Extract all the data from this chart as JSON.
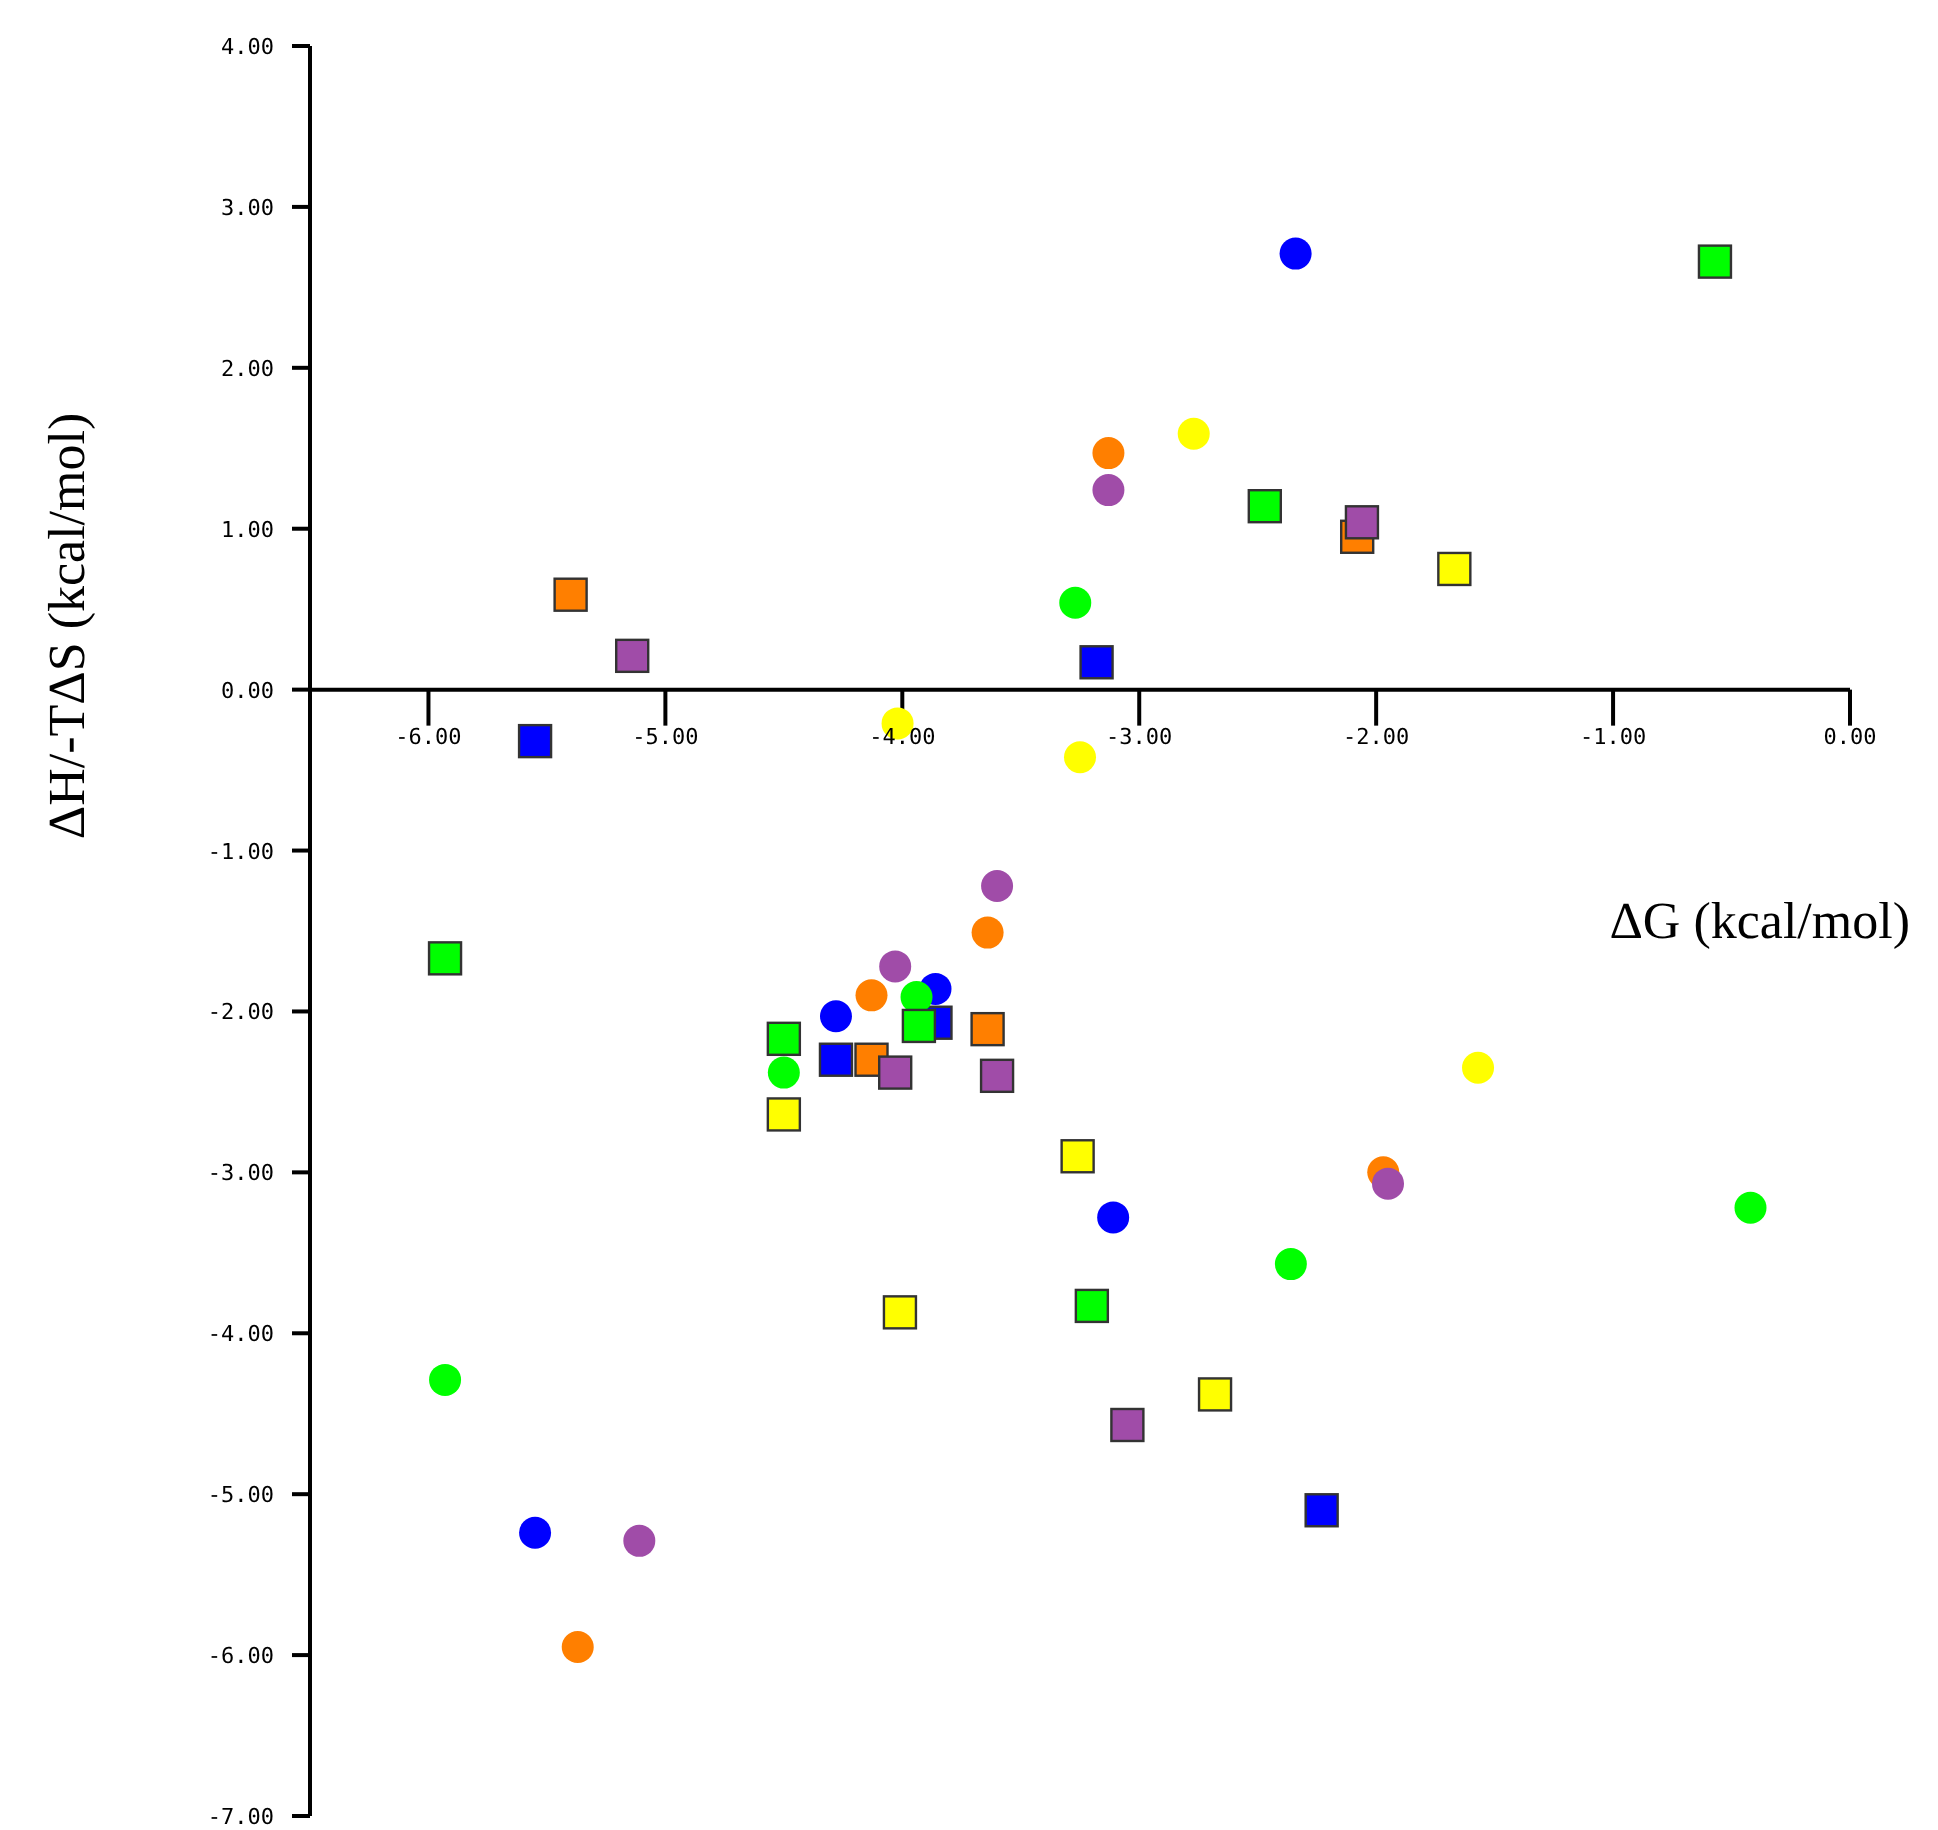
{
  "chart_data": {
    "type": "scatter",
    "xlabel": "ΔG (kcal/mol)",
    "ylabel": "ΔH/-TΔS (kcal/mol)",
    "xlim": [
      -6.5,
      0
    ],
    "ylim": [
      -7,
      4
    ],
    "xticks": [
      {
        "value": -6,
        "label": "-6.00"
      },
      {
        "value": -5,
        "label": "-5.00"
      },
      {
        "value": -4,
        "label": "-4.00"
      },
      {
        "value": -3,
        "label": "-3.00"
      },
      {
        "value": -2,
        "label": "-2.00"
      },
      {
        "value": -1,
        "label": "-1.00"
      },
      {
        "value": 0,
        "label": "0.00"
      }
    ],
    "yticks": [
      {
        "value": 4,
        "label": "4.00"
      },
      {
        "value": 3,
        "label": "3.00"
      },
      {
        "value": 2,
        "label": "2.00"
      },
      {
        "value": 1,
        "label": "1.00"
      },
      {
        "value": 0,
        "label": "0.00"
      },
      {
        "value": -1,
        "label": "-1.00"
      },
      {
        "value": -2,
        "label": "-2.00"
      },
      {
        "value": -3,
        "label": "-3.00"
      },
      {
        "value": -4,
        "label": "-4.00"
      },
      {
        "value": -5,
        "label": "-5.00"
      },
      {
        "value": -6,
        "label": "-6.00"
      },
      {
        "value": -7,
        "label": "-7.00"
      }
    ],
    "series": [
      {
        "color": "#0000ff",
        "marker": "circle",
        "x": [
          -2.34,
          -5.55,
          -4.28,
          -3.86,
          -3.11
        ],
        "values": [
          2.71,
          -5.24,
          -2.03,
          -1.86,
          -3.28
        ]
      },
      {
        "color": "#0000ff",
        "marker": "square",
        "x": [
          -5.55,
          -4.28,
          -3.86,
          -3.18,
          -2.23
        ],
        "values": [
          -0.32,
          -2.3,
          -2.07,
          0.17,
          -5.1
        ]
      },
      {
        "color": "#ff7f00",
        "marker": "circle",
        "x": [
          -3.13,
          -3.64,
          -4.13,
          -1.97,
          -5.37
        ],
        "values": [
          1.47,
          -1.51,
          -1.9,
          -3.0,
          -5.95
        ]
      },
      {
        "color": "#ff7f00",
        "marker": "square",
        "x": [
          -2.08,
          -5.4,
          -3.64,
          -4.13
        ],
        "values": [
          0.95,
          0.59,
          -2.11,
          -2.3
        ]
      },
      {
        "color": "#a04ca8",
        "marker": "circle",
        "x": [
          -3.13,
          -3.6,
          -4.03,
          -1.95,
          -5.11
        ],
        "values": [
          1.24,
          -1.22,
          -1.72,
          -3.07,
          -5.29
        ]
      },
      {
        "color": "#a04ca8",
        "marker": "square",
        "x": [
          -2.06,
          -5.14,
          -4.03,
          -3.6,
          -3.05
        ],
        "values": [
          1.04,
          0.21,
          -2.38,
          -2.4,
          -4.57
        ]
      },
      {
        "color": "#ffff00",
        "marker": "circle",
        "x": [
          -2.77,
          -4.02,
          -3.25,
          -1.57
        ],
        "values": [
          1.59,
          -0.21,
          -0.42,
          -2.35
        ]
      },
      {
        "color": "#ffff00",
        "marker": "square",
        "x": [
          -1.67,
          -4.5,
          -3.26,
          -4.01,
          -2.68
        ],
        "values": [
          0.75,
          -2.64,
          -2.9,
          -3.87,
          -4.38
        ]
      },
      {
        "color": "#00ff00",
        "marker": "circle",
        "x": [
          -3.27,
          -3.94,
          -4.5,
          -0.42,
          -2.36,
          -5.93
        ],
        "values": [
          0.54,
          -1.91,
          -2.38,
          -3.22,
          -3.57,
          -4.29
        ]
      },
      {
        "color": "#00ff00",
        "marker": "square",
        "x": [
          -0.57,
          -2.47,
          -5.93,
          -3.93,
          -4.5,
          -3.2
        ],
        "values": [
          2.66,
          1.14,
          -1.67,
          -2.09,
          -2.17,
          -3.83
        ]
      }
    ]
  }
}
